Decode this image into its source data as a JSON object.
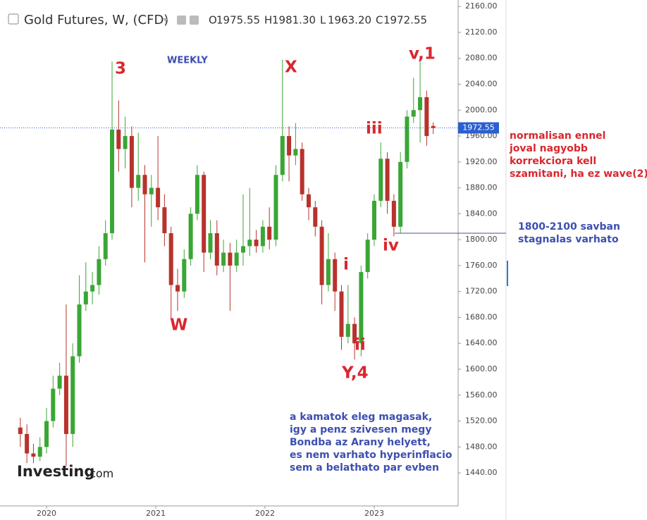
{
  "chart_data": {
    "type": "candlestick",
    "title": "Gold Futures, W, (CFD)",
    "ohlc_labels": [
      "O",
      "H",
      "L",
      "C"
    ],
    "ohlc_values": [
      1975.55,
      1981.3,
      1963.2,
      1972.55
    ],
    "ohlc_value_labels": [
      "1975.55",
      "1981.30",
      "1963.20",
      "1972.55"
    ],
    "up_color": "#3aa635",
    "down_color": "#b8322c",
    "x": [
      2019.76,
      2019.82,
      2019.88,
      2019.94,
      2020,
      2020.06,
      2020.12,
      2020.18,
      2020.24,
      2020.3,
      2020.36,
      2020.42,
      2020.48,
      2020.54,
      2020.6,
      2020.66,
      2020.72,
      2020.78,
      2020.84,
      2020.9,
      2020.96,
      2021.02,
      2021.08,
      2021.14,
      2021.2,
      2021.26,
      2021.32,
      2021.38,
      2021.44,
      2021.5,
      2021.56,
      2021.62,
      2021.68,
      2021.74,
      2021.8,
      2021.86,
      2021.92,
      2021.98,
      2022.04,
      2022.1,
      2022.16,
      2022.22,
      2022.28,
      2022.34,
      2022.4,
      2022.46,
      2022.52,
      2022.58,
      2022.64,
      2022.7,
      2022.76,
      2022.82,
      2022.88,
      2022.94,
      2023,
      2023.06,
      2023.12,
      2023.18,
      2023.24,
      2023.3,
      2023.36,
      2023.42,
      2023.48,
      2023.54
    ],
    "open": [
      1510,
      1500,
      1470,
      1465,
      1480,
      1520,
      1570,
      1590,
      1500,
      1620,
      1700,
      1720,
      1730,
      1770,
      1810,
      1970,
      1940,
      1960,
      1880,
      1900,
      1870,
      1880,
      1850,
      1810,
      1730,
      1720,
      1770,
      1840,
      1900,
      1780,
      1810,
      1760,
      1780,
      1760,
      1780,
      1790,
      1800,
      1790,
      1820,
      1800,
      1900,
      1960,
      1930,
      1940,
      1870,
      1850,
      1820,
      1730,
      1770,
      1720,
      1650,
      1670,
      1640,
      1750,
      1800,
      1860,
      1925,
      1860,
      1820,
      1920,
      1990,
      2000,
      2020,
      1975.55
    ],
    "high": [
      1525,
      1515,
      1485,
      1495,
      1540,
      1590,
      1610,
      1700,
      1640,
      1745,
      1765,
      1750,
      1790,
      1830,
      2075,
      2015,
      1990,
      1975,
      1965,
      1915,
      1900,
      1960,
      1870,
      1820,
      1755,
      1785,
      1850,
      1915,
      1905,
      1830,
      1830,
      1800,
      1795,
      1800,
      1870,
      1880,
      1815,
      1830,
      1850,
      1915,
      2078,
      1975,
      1980,
      1950,
      1880,
      1860,
      1830,
      1810,
      1780,
      1730,
      1730,
      1680,
      1760,
      1810,
      1870,
      1950,
      1935,
      1870,
      1935,
      2000,
      2050,
      2080,
      2030,
      1981.3
    ],
    "low": [
      1480,
      1455,
      1455,
      1458,
      1470,
      1510,
      1560,
      1450,
      1480,
      1610,
      1690,
      1700,
      1715,
      1760,
      1800,
      1905,
      1910,
      1850,
      1860,
      1765,
      1820,
      1830,
      1790,
      1678,
      1690,
      1710,
      1760,
      1830,
      1750,
      1770,
      1745,
      1750,
      1690,
      1750,
      1760,
      1775,
      1780,
      1780,
      1785,
      1790,
      1890,
      1890,
      1915,
      1860,
      1830,
      1805,
      1700,
      1720,
      1690,
      1630,
      1640,
      1615,
      1620,
      1740,
      1790,
      1850,
      1840,
      1805,
      1810,
      1910,
      1980,
      1950,
      1945,
      1963.2
    ],
    "close": [
      1500,
      1470,
      1465,
      1480,
      1520,
      1570,
      1590,
      1500,
      1620,
      1700,
      1720,
      1730,
      1770,
      1810,
      1970,
      1940,
      1960,
      1880,
      1900,
      1870,
      1880,
      1850,
      1810,
      1730,
      1720,
      1770,
      1840,
      1900,
      1780,
      1810,
      1760,
      1780,
      1760,
      1780,
      1790,
      1800,
      1790,
      1820,
      1800,
      1900,
      1960,
      1930,
      1940,
      1870,
      1850,
      1820,
      1730,
      1770,
      1720,
      1650,
      1670,
      1640,
      1750,
      1800,
      1860,
      1925,
      1860,
      1820,
      1920,
      1990,
      2000,
      2020,
      1960,
      1972.55
    ],
    "xlim": [
      2019.574,
      2023.768
    ],
    "xticks": [
      2020,
      2021,
      2022,
      2023
    ],
    "ylim": [
      1389,
      2170
    ],
    "yticks": [
      {
        "value": 1440,
        "label": "1440.00"
      },
      {
        "value": 1480,
        "label": "1480.00"
      },
      {
        "value": 1520,
        "label": "1520.00"
      },
      {
        "value": 1560,
        "label": "1560.00"
      },
      {
        "value": 1600,
        "label": "1600.00"
      },
      {
        "value": 1640,
        "label": "1640.00"
      },
      {
        "value": 1680,
        "label": "1680.00"
      },
      {
        "value": 1720,
        "label": "1720.00"
      },
      {
        "value": 1760,
        "label": "1760.00"
      },
      {
        "value": 1800,
        "label": "1800.00"
      },
      {
        "value": 1840,
        "label": "1840.00"
      },
      {
        "value": 1880,
        "label": "1880.00"
      },
      {
        "value": 1920,
        "label": "1920.00"
      },
      {
        "value": 1960,
        "label": "1960.00"
      },
      {
        "value": 2000,
        "label": "2000.00"
      },
      {
        "value": 2040,
        "label": "2040.00"
      },
      {
        "value": 2080,
        "label": "2080.00"
      },
      {
        "value": 2120,
        "label": "2120.00"
      },
      {
        "value": 2160,
        "label": "2160.00"
      }
    ],
    "grid": false,
    "last_price": 1972.55,
    "last_price_label": "1972.55",
    "timeframe_label": "WEEKLY",
    "wave_labels": [
      "3",
      "X",
      "v,1",
      "iii",
      "W",
      "iv",
      "i",
      "ii",
      "Y,4"
    ],
    "note_red": [
      "normalisan ennel",
      "joval nagyobb",
      "korrekciora kell",
      "szamitani, ha ez wave(2)"
    ],
    "note_range": [
      "1800-2100 savban",
      "stagnalas varhato"
    ],
    "note_bottom": [
      "a kamatok eleg magasak,",
      "igy a penz szivesen megy",
      "Bondba az Arany helyett,",
      "es nem varhato hyperinflacio",
      "sem a belathato par evben"
    ],
    "logo": [
      "Investing",
      ".com"
    ]
  }
}
